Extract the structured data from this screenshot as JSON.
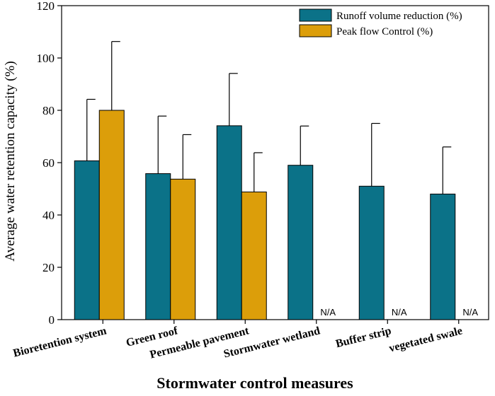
{
  "chart_data": {
    "type": "bar",
    "title": "",
    "xlabel": "Stormwater control measures",
    "ylabel": "Average water retention capacity (%)",
    "ylim": [
      0,
      120
    ],
    "yticks": [
      0,
      20,
      40,
      60,
      80,
      100,
      120
    ],
    "categories": [
      "Bioretention system",
      "Green roof",
      "Permeable pavement",
      "Stormwater wetland",
      "Buffer strip",
      "vegetated swale"
    ],
    "series": [
      {
        "name": "Runoff volume reduction (%)",
        "color": "#0b7288",
        "values": [
          60.7,
          55.8,
          74.1,
          59.0,
          51.0,
          48.0
        ],
        "errors": [
          23.5,
          22.0,
          20.0,
          15.0,
          24.0,
          18.0
        ]
      },
      {
        "name": "Peak flow Control (%)",
        "color": "#dc9e0a",
        "values": [
          80.0,
          53.7,
          48.8,
          null,
          null,
          null
        ],
        "errors": [
          26.3,
          17.0,
          15.0,
          null,
          null,
          null
        ]
      }
    ],
    "na_text": "N/A",
    "legend_position": "top-right"
  }
}
